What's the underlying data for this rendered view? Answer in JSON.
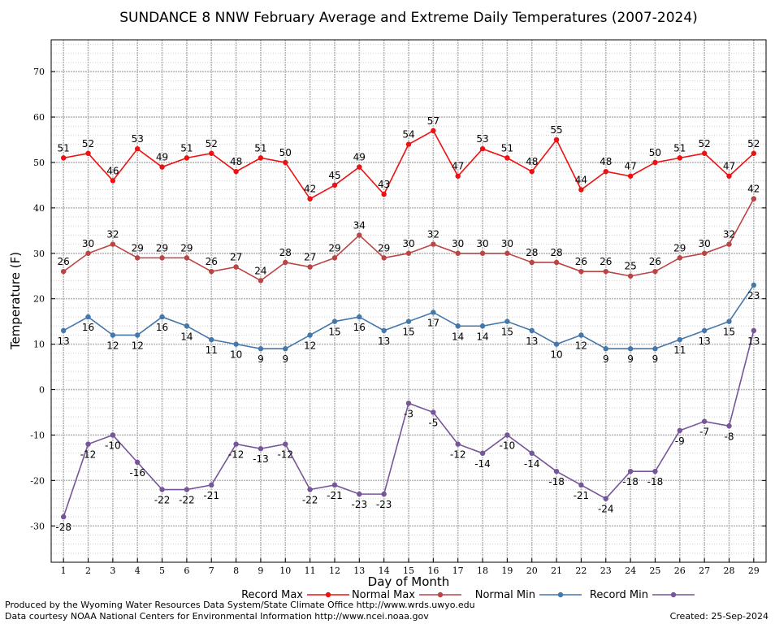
{
  "chart_data": {
    "type": "line",
    "title": "SUNDANCE 8 NNW February Average and Extreme Daily Temperatures (2007-2024)",
    "xlabel": "Day of Month",
    "ylabel": "Temperature (F)",
    "ylim": [
      -38,
      77
    ],
    "xlim": [
      0.5,
      29.5
    ],
    "y_ticks": [
      -30,
      -20,
      -10,
      0,
      10,
      20,
      30,
      40,
      50,
      60,
      70
    ],
    "x": [
      1,
      2,
      3,
      4,
      5,
      6,
      7,
      8,
      9,
      10,
      11,
      12,
      13,
      14,
      15,
      16,
      17,
      18,
      19,
      20,
      21,
      22,
      23,
      24,
      25,
      26,
      27,
      28,
      29
    ],
    "grid": true,
    "legend_position": "bottom",
    "series": [
      {
        "name": "Record Max",
        "color": "#ee1111",
        "label_position": "above",
        "values": [
          51,
          52,
          46,
          53,
          49,
          51,
          52,
          48,
          51,
          50,
          42,
          45,
          49,
          43,
          54,
          57,
          47,
          53,
          51,
          48,
          55,
          44,
          48,
          47,
          50,
          51,
          52,
          47,
          52
        ]
      },
      {
        "name": "Normal Max",
        "color": "#bb4444",
        "label_position": "above",
        "values": [
          26,
          30,
          32,
          29,
          29,
          29,
          26,
          27,
          24,
          28,
          27,
          29,
          34,
          29,
          30,
          32,
          30,
          30,
          30,
          28,
          28,
          26,
          26,
          25,
          26,
          29,
          30,
          32,
          42
        ]
      },
      {
        "name": "Normal Min",
        "color": "#4477aa",
        "label_position": "below",
        "values": [
          13,
          16,
          12,
          12,
          16,
          14,
          11,
          10,
          9,
          9,
          12,
          15,
          16,
          13,
          15,
          17,
          14,
          14,
          15,
          13,
          10,
          12,
          9,
          9,
          9,
          11,
          13,
          15,
          23
        ]
      },
      {
        "name": "Record Min",
        "color": "#775599",
        "label_position": "below",
        "values": [
          -28,
          -12,
          -10,
          -16,
          -22,
          -22,
          -21,
          -12,
          -13,
          -12,
          -22,
          -21,
          -23,
          -23,
          -3,
          -5,
          -12,
          -14,
          -10,
          -14,
          -18,
          -21,
          -24,
          -18,
          -18,
          -9,
          -7,
          -8,
          13
        ]
      }
    ]
  },
  "footer": {
    "produced_by": "Produced by the Wyoming Water Resources Data System/State Climate Office http://www.wrds.uwyo.edu",
    "courtesy": "Data courtesy NOAA National Centers for Environmental Information http://www.ncei.noaa.gov",
    "created": "Created: 25-Sep-2024"
  }
}
